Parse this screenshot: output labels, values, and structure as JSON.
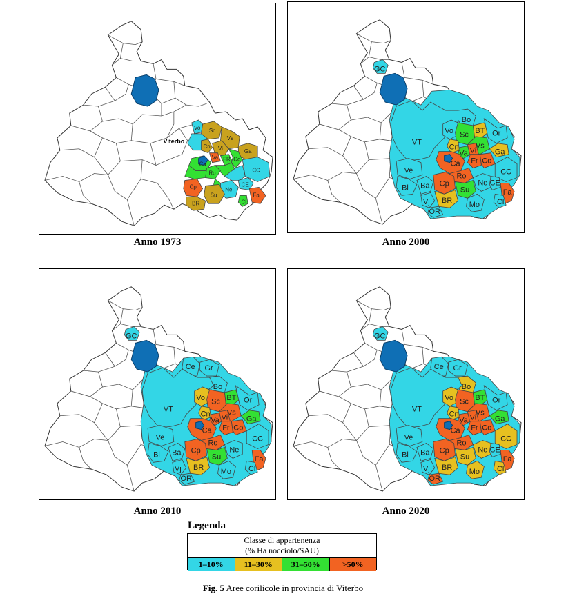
{
  "colors": {
    "c1": "#33d6e6",
    "c2": "#e6c020",
    "c3": "#33e033",
    "c4": "#f26322",
    "c2_1973": "#c9a21e",
    "lake": "#0f6fb5",
    "white": "#ffffff"
  },
  "maps": [
    {
      "caption": "Anno 1973",
      "city_label": "Viterbo",
      "zones": [
        {
          "label": "Vo",
          "class": "c1"
        },
        {
          "label": "Sc",
          "class": "c2_1973"
        },
        {
          "label": "Vs",
          "class": "c2_1973"
        },
        {
          "label": "Cn",
          "class": "c2_1973"
        },
        {
          "label": "Vi",
          "class": "c2_1973"
        },
        {
          "label": "Ga",
          "class": "c2_1973"
        },
        {
          "label": "Va",
          "class": "c4"
        },
        {
          "label": "FR",
          "class": "c3"
        },
        {
          "label": "Co",
          "class": "c3"
        },
        {
          "label": "Ca",
          "class": "c3"
        },
        {
          "label": "Cp",
          "class": "c4"
        },
        {
          "label": "Ro",
          "class": "c3"
        },
        {
          "label": "CC",
          "class": "c1"
        },
        {
          "label": "CE",
          "class": "c1"
        },
        {
          "label": "Ne",
          "class": "c1"
        },
        {
          "label": "Fa",
          "class": "c4"
        },
        {
          "label": "BR",
          "class": "c2_1973"
        },
        {
          "label": "Su",
          "class": "c2_1973"
        },
        {
          "label": "Cl",
          "class": "c3"
        }
      ]
    },
    {
      "caption": "Anno 2000",
      "zones": [
        {
          "label": "GC",
          "class": "c1"
        },
        {
          "label": "VT",
          "class": "c1"
        },
        {
          "label": "Bo",
          "class": "c1"
        },
        {
          "label": "Vo",
          "class": "c1"
        },
        {
          "label": "BT",
          "class": "c2"
        },
        {
          "label": "Or",
          "class": "c1"
        },
        {
          "label": "Sc",
          "class": "c3"
        },
        {
          "label": "Vs",
          "class": "c3"
        },
        {
          "label": "Ga",
          "class": "c2"
        },
        {
          "label": "Cn",
          "class": "c2"
        },
        {
          "label": "Va",
          "class": "c3"
        },
        {
          "label": "Vi",
          "class": "c4"
        },
        {
          "label": "Fr",
          "class": "c4"
        },
        {
          "label": "Co",
          "class": "c4"
        },
        {
          "label": "Ve",
          "class": "c1"
        },
        {
          "label": "Ca",
          "class": "c4"
        },
        {
          "label": "Ro",
          "class": "c4"
        },
        {
          "label": "CC",
          "class": "c1"
        },
        {
          "label": "Bl",
          "class": "c1"
        },
        {
          "label": "Ba",
          "class": "c1"
        },
        {
          "label": "Cp",
          "class": "c4"
        },
        {
          "label": "Ne",
          "class": "c1"
        },
        {
          "label": "CE",
          "class": "c1"
        },
        {
          "label": "Fa",
          "class": "c4"
        },
        {
          "label": "BR",
          "class": "c2"
        },
        {
          "label": "Su",
          "class": "c3"
        },
        {
          "label": "Vj",
          "class": "c1"
        },
        {
          "label": "OR",
          "class": "c1"
        },
        {
          "label": "Mo",
          "class": "c1"
        },
        {
          "label": "Cl",
          "class": "c1"
        }
      ]
    },
    {
      "caption": "Anno 2010",
      "zones": [
        {
          "label": "GC",
          "class": "c1"
        },
        {
          "label": "Ce",
          "class": "c1"
        },
        {
          "label": "Gr",
          "class": "c1"
        },
        {
          "label": "Bo",
          "class": "c1"
        },
        {
          "label": "VT",
          "class": "c1"
        },
        {
          "label": "Vo",
          "class": "c2"
        },
        {
          "label": "Sc",
          "class": "c4"
        },
        {
          "label": "BT",
          "class": "c3"
        },
        {
          "label": "Or",
          "class": "c1"
        },
        {
          "label": "Vs",
          "class": "c4"
        },
        {
          "label": "Ga",
          "class": "c3"
        },
        {
          "label": "Cn",
          "class": "c2"
        },
        {
          "label": "Va",
          "class": "c4"
        },
        {
          "label": "Vi",
          "class": "c4"
        },
        {
          "label": "Fr",
          "class": "c4"
        },
        {
          "label": "Co",
          "class": "c4"
        },
        {
          "label": "Ve",
          "class": "c1"
        },
        {
          "label": "Ca",
          "class": "c4"
        },
        {
          "label": "Ro",
          "class": "c4"
        },
        {
          "label": "CC",
          "class": "c1"
        },
        {
          "label": "Bl",
          "class": "c1"
        },
        {
          "label": "Ba",
          "class": "c1"
        },
        {
          "label": "Cp",
          "class": "c4"
        },
        {
          "label": "Su",
          "class": "c3"
        },
        {
          "label": "Ne",
          "class": "c1"
        },
        {
          "label": "Fa",
          "class": "c4"
        },
        {
          "label": "BR",
          "class": "c2"
        },
        {
          "label": "Vj",
          "class": "c1"
        },
        {
          "label": "OR",
          "class": "c1"
        },
        {
          "label": "Mo",
          "class": "c1"
        },
        {
          "label": "Cl",
          "class": "c1"
        }
      ]
    },
    {
      "caption": "Anno 2020",
      "zones": [
        {
          "label": "GC",
          "class": "c1"
        },
        {
          "label": "Ce",
          "class": "c1"
        },
        {
          "label": "Gr",
          "class": "c1"
        },
        {
          "label": "Bo",
          "class": "c2"
        },
        {
          "label": "VT",
          "class": "c1"
        },
        {
          "label": "Vo",
          "class": "c2"
        },
        {
          "label": "Sc",
          "class": "c4"
        },
        {
          "label": "BT",
          "class": "c3"
        },
        {
          "label": "Or",
          "class": "c1"
        },
        {
          "label": "Vs",
          "class": "c4"
        },
        {
          "label": "Ga",
          "class": "c3"
        },
        {
          "label": "Cn",
          "class": "c2"
        },
        {
          "label": "Va",
          "class": "c4"
        },
        {
          "label": "Vi",
          "class": "c4"
        },
        {
          "label": "Fr",
          "class": "c4"
        },
        {
          "label": "Co",
          "class": "c4"
        },
        {
          "label": "Ve",
          "class": "c1"
        },
        {
          "label": "Ca",
          "class": "c4"
        },
        {
          "label": "Ro",
          "class": "c4"
        },
        {
          "label": "CC",
          "class": "c2"
        },
        {
          "label": "Bl",
          "class": "c1"
        },
        {
          "label": "Ba",
          "class": "c1"
        },
        {
          "label": "Cp",
          "class": "c4"
        },
        {
          "label": "Su",
          "class": "c2"
        },
        {
          "label": "Ne",
          "class": "c2"
        },
        {
          "label": "CE",
          "class": "c1"
        },
        {
          "label": "Fa",
          "class": "c4"
        },
        {
          "label": "BR",
          "class": "c2"
        },
        {
          "label": "Vj",
          "class": "c1"
        },
        {
          "label": "OR",
          "class": "c4"
        },
        {
          "label": "Mo",
          "class": "c2"
        },
        {
          "label": "Cl",
          "class": "c2"
        }
      ]
    }
  ],
  "legend": {
    "title": "Legenda",
    "header_line1": "Classe di appartenenza",
    "header_line2": "(% Ha nocciolo/SAU)",
    "classes": [
      {
        "label": "1–10%",
        "color": "#33d6e6"
      },
      {
        "label": "11–30%",
        "color": "#e6c020"
      },
      {
        "label": "31–50%",
        "color": "#33e033"
      },
      {
        "label": ">50%",
        "color": "#f26322"
      }
    ]
  },
  "figure_caption": {
    "number": "Fig. 5",
    "text": " Aree corilicole in provincia di Viterbo"
  }
}
